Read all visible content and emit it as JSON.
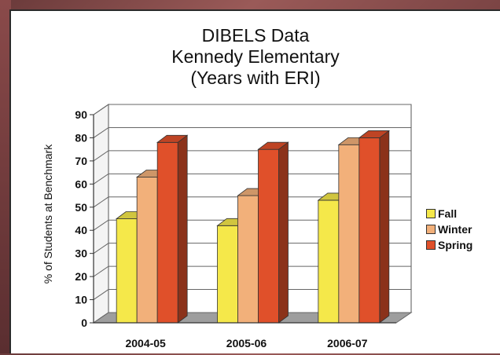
{
  "title_lines": [
    "DIBELS Data",
    "Kennedy Elementary",
    "(Years with ERI)"
  ],
  "chart_data": {
    "type": "bar",
    "title": "DIBELS Data Kennedy Elementary (Years with ERI)",
    "xlabel": "",
    "ylabel": "% of Students at Benchmark",
    "categories": [
      "2004-05",
      "2005-06",
      "2006-07"
    ],
    "series": [
      {
        "name": "Fall",
        "values": [
          45,
          42,
          53
        ],
        "color": "#f5e84a"
      },
      {
        "name": "Winter",
        "values": [
          63,
          55,
          77
        ],
        "color": "#f2b07a"
      },
      {
        "name": "Spring",
        "values": [
          78,
          75,
          80
        ],
        "color": "#e0502a"
      }
    ],
    "ylim": [
      0,
      90
    ],
    "yticks": [
      0,
      10,
      20,
      30,
      40,
      50,
      60,
      70,
      80,
      90
    ],
    "grid": true,
    "legend_position": "right"
  }
}
